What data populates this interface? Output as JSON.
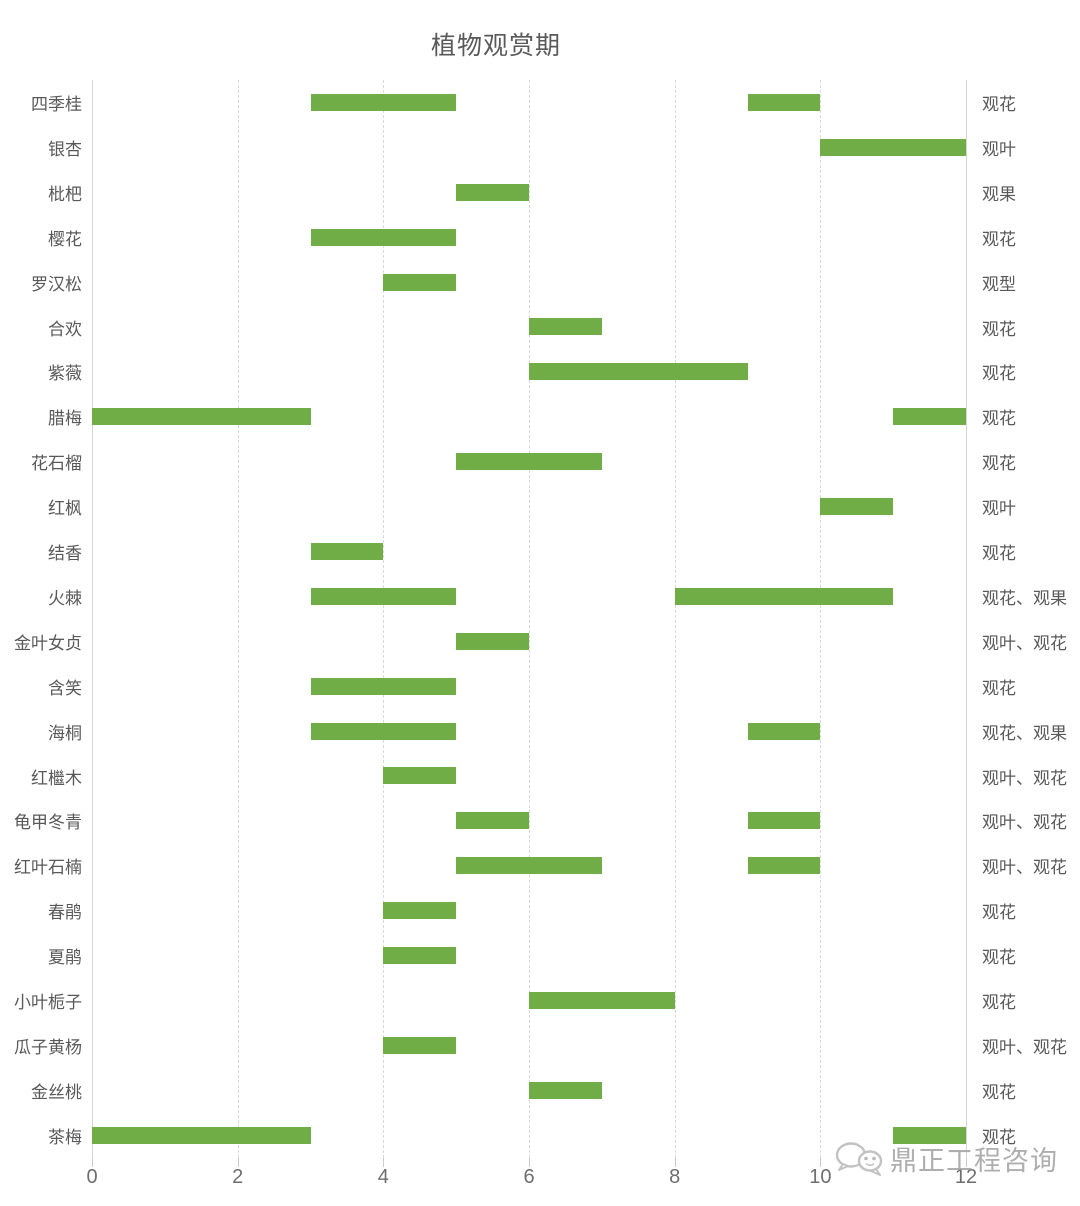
{
  "chart_data": {
    "type": "bar",
    "variant": "gantt-ranges",
    "title": "植物观赏期",
    "xlabel": "",
    "ylabel": "",
    "xlim": [
      0,
      12
    ],
    "xticks": [
      0,
      2,
      4,
      6,
      8,
      10,
      12
    ],
    "grid": "vertical-dashed",
    "bar_color": "#70AD47",
    "rows": [
      {
        "name": "四季桂",
        "periods": [
          [
            3,
            5
          ],
          [
            9,
            10
          ]
        ],
        "type": "观花"
      },
      {
        "name": "银杏",
        "periods": [
          [
            10,
            12
          ]
        ],
        "type": "观叶"
      },
      {
        "name": "枇杷",
        "periods": [
          [
            5,
            6
          ]
        ],
        "type": "观果"
      },
      {
        "name": "樱花",
        "periods": [
          [
            3,
            5
          ]
        ],
        "type": "观花"
      },
      {
        "name": "罗汉松",
        "periods": [
          [
            4,
            5
          ]
        ],
        "type": "观型"
      },
      {
        "name": "合欢",
        "periods": [
          [
            6,
            7
          ]
        ],
        "type": "观花"
      },
      {
        "name": "紫薇",
        "periods": [
          [
            6,
            9
          ]
        ],
        "type": "观花"
      },
      {
        "name": "腊梅",
        "periods": [
          [
            0,
            3
          ],
          [
            11,
            12
          ]
        ],
        "type": "观花"
      },
      {
        "name": "花石榴",
        "periods": [
          [
            5,
            7
          ]
        ],
        "type": "观花"
      },
      {
        "name": "红枫",
        "periods": [
          [
            10,
            11
          ]
        ],
        "type": "观叶"
      },
      {
        "name": "结香",
        "periods": [
          [
            3,
            4
          ]
        ],
        "type": "观花"
      },
      {
        "name": "火棘",
        "periods": [
          [
            3,
            5
          ],
          [
            8,
            11
          ]
        ],
        "type": "观花、观果"
      },
      {
        "name": "金叶女贞",
        "periods": [
          [
            5,
            6
          ]
        ],
        "type": "观叶、观花"
      },
      {
        "name": "含笑",
        "periods": [
          [
            3,
            5
          ]
        ],
        "type": "观花"
      },
      {
        "name": "海桐",
        "periods": [
          [
            3,
            5
          ],
          [
            9,
            10
          ]
        ],
        "type": "观花、观果"
      },
      {
        "name": "红檵木",
        "periods": [
          [
            4,
            5
          ]
        ],
        "type": "观叶、观花"
      },
      {
        "name": "龟甲冬青",
        "periods": [
          [
            5,
            6
          ],
          [
            9,
            10
          ]
        ],
        "type": "观叶、观花"
      },
      {
        "name": "红叶石楠",
        "periods": [
          [
            5,
            7
          ],
          [
            9,
            10
          ]
        ],
        "type": "观叶、观花"
      },
      {
        "name": "春鹃",
        "periods": [
          [
            4,
            5
          ]
        ],
        "type": "观花"
      },
      {
        "name": "夏鹃",
        "periods": [
          [
            4,
            5
          ]
        ],
        "type": "观花"
      },
      {
        "name": "小叶栀子",
        "periods": [
          [
            6,
            8
          ]
        ],
        "type": "观花"
      },
      {
        "name": "瓜子黄杨",
        "periods": [
          [
            4,
            5
          ]
        ],
        "type": "观叶、观花"
      },
      {
        "name": "金丝桃",
        "periods": [
          [
            6,
            7
          ]
        ],
        "type": "观花"
      },
      {
        "name": "茶梅",
        "periods": [
          [
            0,
            3
          ],
          [
            11,
            12
          ]
        ],
        "type": "观花"
      }
    ]
  },
  "watermark": {
    "text": "鼎正工程咨询"
  },
  "colors": {
    "bar": "#70AD47",
    "grid": "#D9D9D9",
    "label": "#595959",
    "tick": "#6E6E6E",
    "watermark": "#9D9D9D"
  }
}
